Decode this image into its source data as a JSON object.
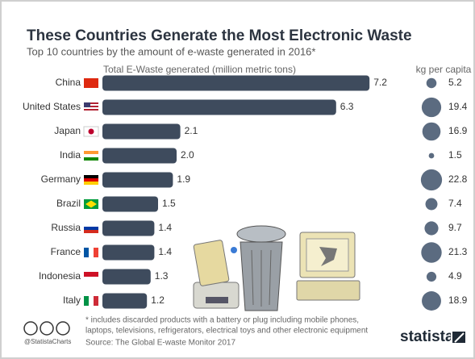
{
  "chart_data": {
    "type": "bar",
    "title": "These Countries Generate the Most Electronic Waste",
    "subtitle": "Top 10 countries by the amount of e-waste generated in 2016*",
    "categories": [
      "China",
      "United States",
      "Japan",
      "India",
      "Germany",
      "Brazil",
      "Russia",
      "France",
      "Indonesia",
      "Italy"
    ],
    "series": [
      {
        "name": "Total E-Waste generated (million metric tons)",
        "color": "#3e4b5d",
        "values": [
          7.2,
          6.3,
          2.1,
          2.0,
          1.9,
          1.5,
          1.4,
          1.4,
          1.3,
          1.2
        ],
        "value_labels": [
          "7.2",
          "6.3",
          "2.1",
          "2.0",
          "1.9",
          "1.5",
          "1.4",
          "1.4",
          "1.3",
          "1.2"
        ]
      },
      {
        "name": "kg per capita",
        "color": "#5b6b80",
        "values": [
          5.2,
          19.4,
          16.9,
          1.5,
          22.8,
          7.4,
          9.7,
          21.3,
          4.9,
          18.9
        ]
      }
    ],
    "footnote": [
      "* includes discarded products with a battery or plug including mobile phones,",
      "laptops, televisions, refrigerators, electrical toys and other electronic equipment"
    ],
    "handle": "@StatistaCharts",
    "source": "Source: The Global E-waste Monitor 2017",
    "brand": "statista"
  }
}
